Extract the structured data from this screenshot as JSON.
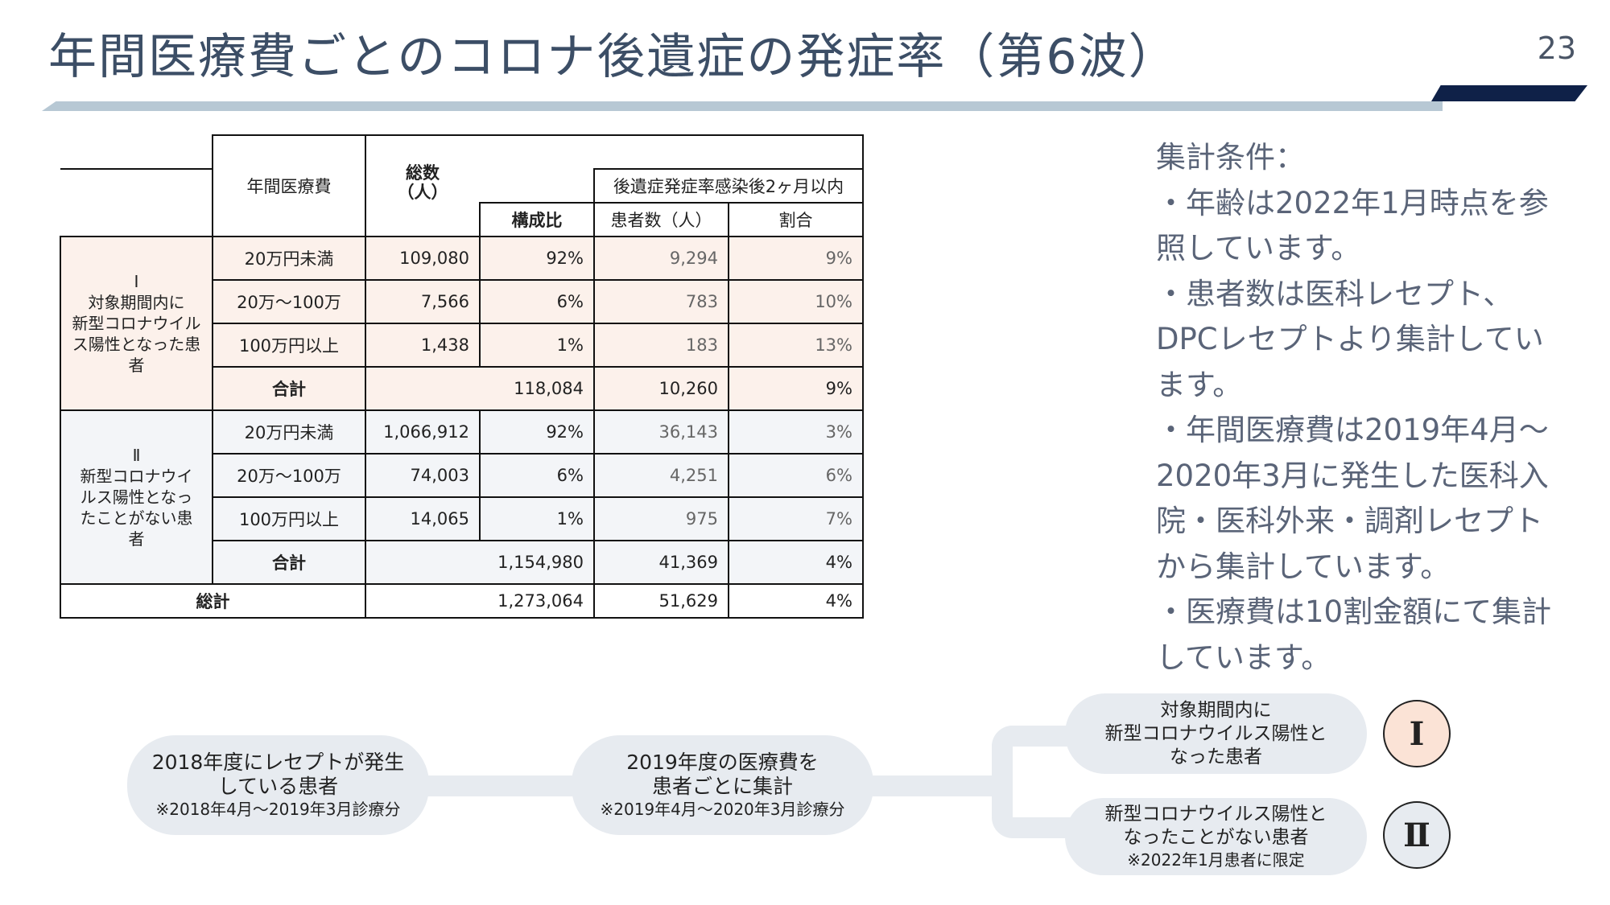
{
  "title": "年間医療費ごとのコロナ後遺症の発症率（第6波）",
  "page_number": "23",
  "table": {
    "header": {
      "annual_cost": "年間医療費",
      "total_count": "総数\n（人）",
      "ratio": "構成比",
      "sequela_group": "後遺症発症率感染後2ヶ月以内",
      "patients": "患者数（人）",
      "rate": "割合"
    },
    "groups": [
      {
        "label": "Ⅰ\n対象期間内に\n新型コロナウイル\nス陽性となった患\n者",
        "rows": [
          {
            "cost": "20万円未満",
            "total": "109,080",
            "ratio": "92%",
            "patients": "9,294",
            "rate": "9%"
          },
          {
            "cost": "20万～100万",
            "total": "7,566",
            "ratio": "6%",
            "patients": "783",
            "rate": "10%"
          },
          {
            "cost": "100万円以上",
            "total": "1,438",
            "ratio": "1%",
            "patients": "183",
            "rate": "13%"
          }
        ],
        "subtotal": {
          "label": "合計",
          "total": "118,084",
          "patients": "10,260",
          "rate": "9%"
        }
      },
      {
        "label": "Ⅱ\n新型コロナウイ\nルス陽性となっ\nたことがない患\n者",
        "rows": [
          {
            "cost": "20万円未満",
            "total": "1,066,912",
            "ratio": "92%",
            "patients": "36,143",
            "rate": "3%"
          },
          {
            "cost": "20万～100万",
            "total": "74,003",
            "ratio": "6%",
            "patients": "4,251",
            "rate": "6%"
          },
          {
            "cost": "100万円以上",
            "total": "14,065",
            "ratio": "1%",
            "patients": "975",
            "rate": "7%"
          }
        ],
        "subtotal": {
          "label": "合計",
          "total": "1,154,980",
          "patients": "41,369",
          "rate": "4%"
        }
      }
    ],
    "grand_total": {
      "label": "総計",
      "total": "1,273,064",
      "patients": "51,629",
      "rate": "4%"
    }
  },
  "notes": [
    "集計条件：",
    "・年齢は2022年1月時点を参",
    "照しています。",
    "・患者数は医科レセプト、",
    "DPCレセプトより集計してい",
    "ます。",
    "・年間医療費は2019年4月～",
    "2020年3月に発生した医科入",
    "院・医科外来・調剤レセプト",
    "から集計しています。",
    "・医療費は10割金額にて集計",
    "しています。"
  ],
  "flow": {
    "step1": {
      "main": "2018年度にレセプトが発生\nしている患者",
      "sub": "※2018年4月～2019年3月診療分"
    },
    "step2": {
      "main": "2019年度の医療費を\n患者ごとに集計",
      "sub": "※2019年4月～2020年3月診療分"
    },
    "branch1": {
      "main": "対象期間内に\n新型コロナウイルス陽性と\nなった患者",
      "marker": "Ⅰ",
      "marker_color": "#fbe3d6"
    },
    "branch2": {
      "main": "新型コロナウイルス陽性と\nなったことがない患者",
      "sub": "※2022年1月患者に限定",
      "marker": "Ⅱ",
      "marker_color": "#e7ebf0"
    }
  }
}
